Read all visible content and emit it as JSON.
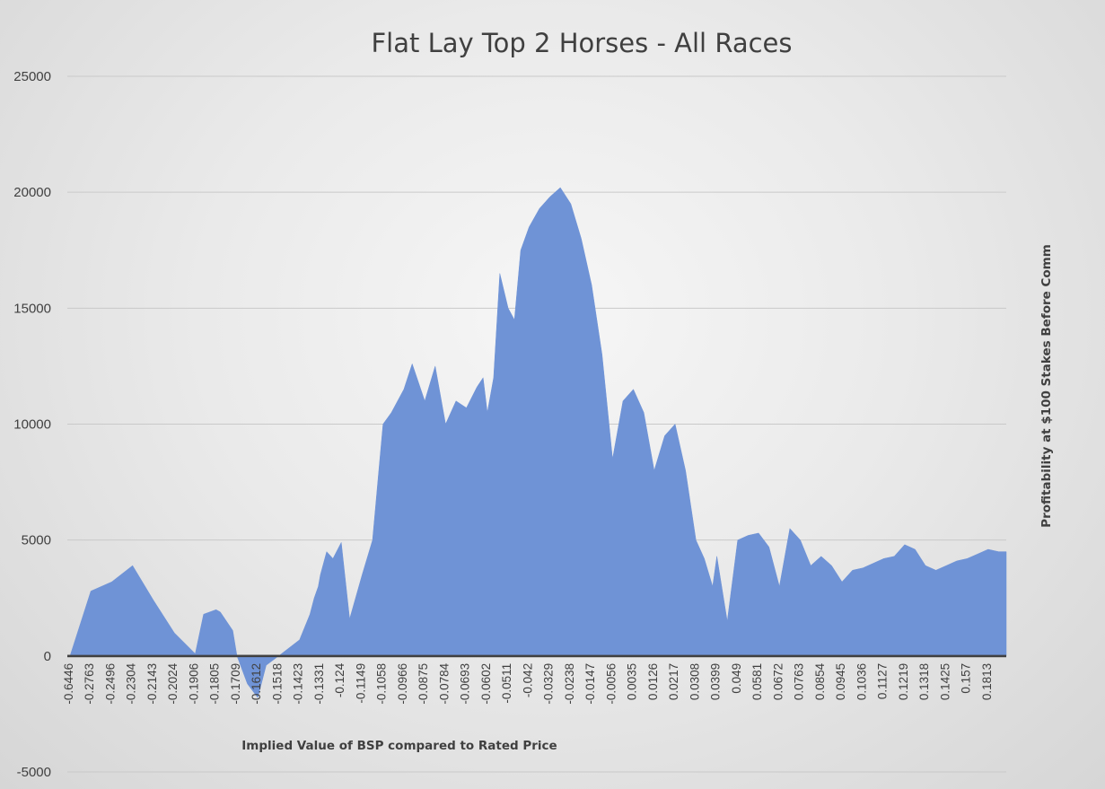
{
  "chart_data": {
    "type": "area",
    "title": "Flat Lay Top 2 Horses - All Races",
    "xlabel": "Implied Value of BSP compared to Rated Price",
    "ylabel": "Profitability at $100 Stakes Before Comm",
    "ylim": [
      -5000,
      25000
    ],
    "yticks": [
      "-5000",
      "0",
      "5000",
      "10000",
      "15000",
      "20000",
      "25000"
    ],
    "grid": true,
    "legend": "none",
    "colors": {
      "area": "#6f93d6",
      "gridline": "#c9c9c9",
      "baseline": "#404040",
      "text": "#404040"
    },
    "categories": [
      "-0.6446",
      "-0.2763",
      "-0.2496",
      "-0.2304",
      "-0.2143",
      "-0.2024",
      "-0.1906",
      "-0.1805",
      "-0.1709",
      "-0.1612",
      "-0.1518",
      "-0.1423",
      "-0.1331",
      "-0.124",
      "-0.1149",
      "-0.1058",
      "-0.0966",
      "-0.0875",
      "-0.0784",
      "-0.0693",
      "-0.0602",
      "-0.0511",
      "-0.042",
      "-0.0329",
      "-0.0238",
      "-0.0147",
      "-0.0056",
      "0.0035",
      "0.0126",
      "0.0217",
      "0.0308",
      "0.0399",
      "0.049",
      "0.0581",
      "0.0672",
      "0.0763",
      "0.0854",
      "0.0945",
      "0.1036",
      "0.1127",
      "0.1219",
      "0.1318",
      "0.1425",
      "0.157",
      "0.1813"
    ],
    "x": [
      0,
      1,
      2,
      3,
      4,
      5,
      6,
      6.4,
      7,
      7.2,
      7.8,
      8,
      8.5,
      9,
      9.4,
      10,
      11,
      11.5,
      11.7,
      11.9,
      12,
      12.3,
      12.6,
      13,
      13.4,
      14,
      14.5,
      14.8,
      15,
      15.4,
      16,
      16.4,
      17,
      17.5,
      18,
      18.5,
      19,
      19.5,
      19.8,
      20,
      20.3,
      20.6,
      21,
      21.3,
      21.6,
      22,
      22.5,
      23,
      23.5,
      24,
      24.5,
      25,
      25.5,
      26,
      26.5,
      27,
      27.5,
      28,
      28.5,
      29,
      29.5,
      30,
      30.4,
      30.8,
      31,
      31.5,
      32,
      32.5,
      33,
      33.5,
      34,
      34.5,
      35,
      35.5,
      36,
      36.5,
      37,
      37.5,
      38,
      38.5,
      39,
      39.5,
      40,
      40.5,
      41,
      41.5,
      42,
      42.5,
      43,
      43.5,
      44,
      44.5
    ],
    "y": [
      0,
      2800,
      3200,
      3900,
      2400,
      1000,
      100,
      1800,
      2000,
      1900,
      1100,
      0,
      -1200,
      -1800,
      -400,
      0,
      700,
      1800,
      2500,
      3000,
      3500,
      4500,
      4200,
      4900,
      1600,
      3500,
      5000,
      8000,
      10000,
      10500,
      11500,
      12600,
      11000,
      12500,
      10000,
      11000,
      10700,
      11600,
      12000,
      10500,
      12000,
      16500,
      15000,
      14500,
      17500,
      18500,
      19300,
      19800,
      20200,
      19500,
      18000,
      16000,
      13000,
      8500,
      11000,
      11500,
      10500,
      8000,
      9500,
      10000,
      8000,
      5000,
      4200,
      3000,
      4300,
      1500,
      5000,
      5200,
      5300,
      4700,
      3000,
      5500,
      5000,
      3900,
      4300,
      3900,
      3200,
      3700,
      3800,
      4000,
      4200,
      4300,
      4800,
      4600,
      3900,
      3700,
      3900,
      4100,
      4200,
      4400,
      4600,
      4500
    ]
  }
}
